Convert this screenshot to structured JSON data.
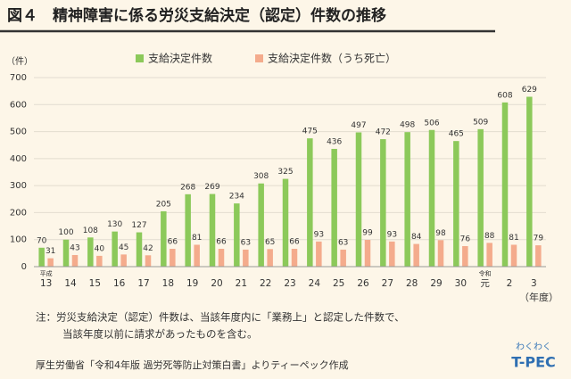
{
  "chart_data": {
    "type": "bar",
    "title": "図４　精神障害に係る労災支給決定（認定）件数の推移",
    "y_label": "（件）",
    "x_label": "（年度）",
    "era_labels": [
      "平成",
      "令和"
    ],
    "categories": [
      "13",
      "14",
      "15",
      "16",
      "17",
      "18",
      "19",
      "20",
      "21",
      "22",
      "23",
      "24",
      "25",
      "26",
      "27",
      "28",
      "29",
      "30",
      "元",
      "2",
      "3"
    ],
    "series": [
      {
        "name": "支給決定件数",
        "color": "#8cc95a",
        "values": [
          70,
          100,
          108,
          130,
          127,
          205,
          268,
          269,
          234,
          308,
          325,
          475,
          436,
          497,
          472,
          498,
          506,
          465,
          509,
          608,
          629
        ]
      },
      {
        "name": "支給決定件数（うち死亡）",
        "color": "#f4ab8c",
        "values": [
          31,
          43,
          40,
          45,
          42,
          66,
          81,
          66,
          63,
          65,
          66,
          93,
          63,
          99,
          93,
          84,
          98,
          76,
          88,
          81,
          79
        ]
      }
    ],
    "ylim": [
      0,
      700
    ],
    "yticks": [
      0,
      100,
      200,
      300,
      400,
      500,
      600,
      700
    ],
    "grid": true,
    "notes": [
      "注：労災支給決定（認定）件数は、当該年度内に「業務上」と認定した件数で、",
      "当該年度以前に請求があったものを含む。"
    ],
    "source": "厚生労働省「令和4年版 過労死等防止対策白書」よりティーペック作成",
    "logo": [
      "わくわく",
      "T-PEC"
    ]
  }
}
